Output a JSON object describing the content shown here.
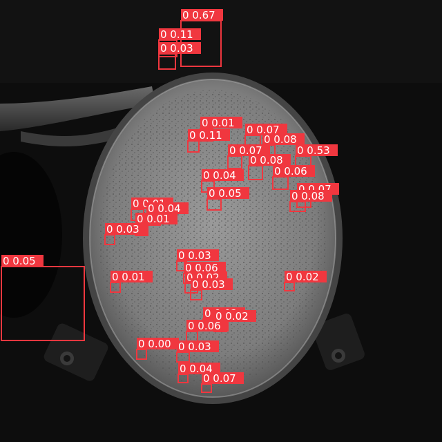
{
  "image": {
    "subject": "petri-dish",
    "background_color": "#0d0d0d",
    "dish_color": "#8f8f8f",
    "box_color": "#f0373f",
    "label_text_color": "#ffffff"
  },
  "detections": [
    {
      "cls": "0",
      "score": "0.67"
    },
    {
      "cls": "0",
      "score": "0.11"
    },
    {
      "cls": "0",
      "score": "0.03"
    },
    {
      "cls": "0",
      "score": "0.05"
    },
    {
      "cls": "0",
      "score": "0.01"
    },
    {
      "cls": "0",
      "score": "0.07"
    },
    {
      "cls": "0",
      "score": "0.11"
    },
    {
      "cls": "0",
      "score": "0.08"
    },
    {
      "cls": "0",
      "score": "0.07"
    },
    {
      "cls": "0",
      "score": "0.53"
    },
    {
      "cls": "0",
      "score": "0.08"
    },
    {
      "cls": "0",
      "score": "0.06"
    },
    {
      "cls": "0",
      "score": "0.04"
    },
    {
      "cls": "0",
      "score": "0.07"
    },
    {
      "cls": "0",
      "score": "0.05"
    },
    {
      "cls": "0",
      "score": "0.08"
    },
    {
      "cls": "0",
      "score": "0.01"
    },
    {
      "cls": "0",
      "score": "0.04"
    },
    {
      "cls": "0",
      "score": "0.01"
    },
    {
      "cls": "0",
      "score": "0.03"
    },
    {
      "cls": "0",
      "score": "0.03"
    },
    {
      "cls": "0",
      "score": "0.06"
    },
    {
      "cls": "0",
      "score": "0.02"
    },
    {
      "cls": "0",
      "score": "0.03"
    },
    {
      "cls": "0",
      "score": "0.01"
    },
    {
      "cls": "0",
      "score": "0.02"
    },
    {
      "cls": "0",
      "score": "0.02"
    },
    {
      "cls": "0",
      "score": "0.02"
    },
    {
      "cls": "0",
      "score": "0.06"
    },
    {
      "cls": "0",
      "score": "0.00"
    },
    {
      "cls": "0",
      "score": "0.03"
    },
    {
      "cls": "0",
      "score": "0.04"
    },
    {
      "cls": "0",
      "score": "0.07"
    }
  ]
}
